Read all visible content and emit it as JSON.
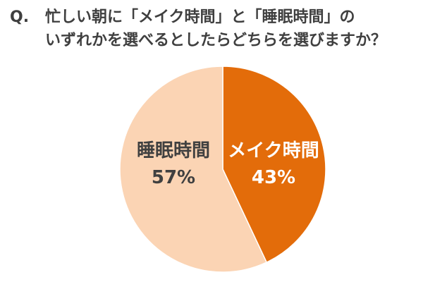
{
  "question": {
    "prefix": "Q.",
    "line1": "忙しい朝に「メイク時間」と「睡眠時間」の",
    "line2": "いずれかを選べるとしたらどちらを選びますか？"
  },
  "chart_data": {
    "type": "pie",
    "title": "",
    "slices": [
      {
        "label": "メイク時間",
        "value": 43,
        "display": "43%",
        "color": "#e36c0a",
        "text_color": "#ffffff"
      },
      {
        "label": "睡眠時間",
        "value": 57,
        "display": "57%",
        "color": "#fbd4b4",
        "text_color": "#404040"
      }
    ],
    "start": "12 o'clock",
    "direction": "clockwise",
    "legend": "none"
  }
}
